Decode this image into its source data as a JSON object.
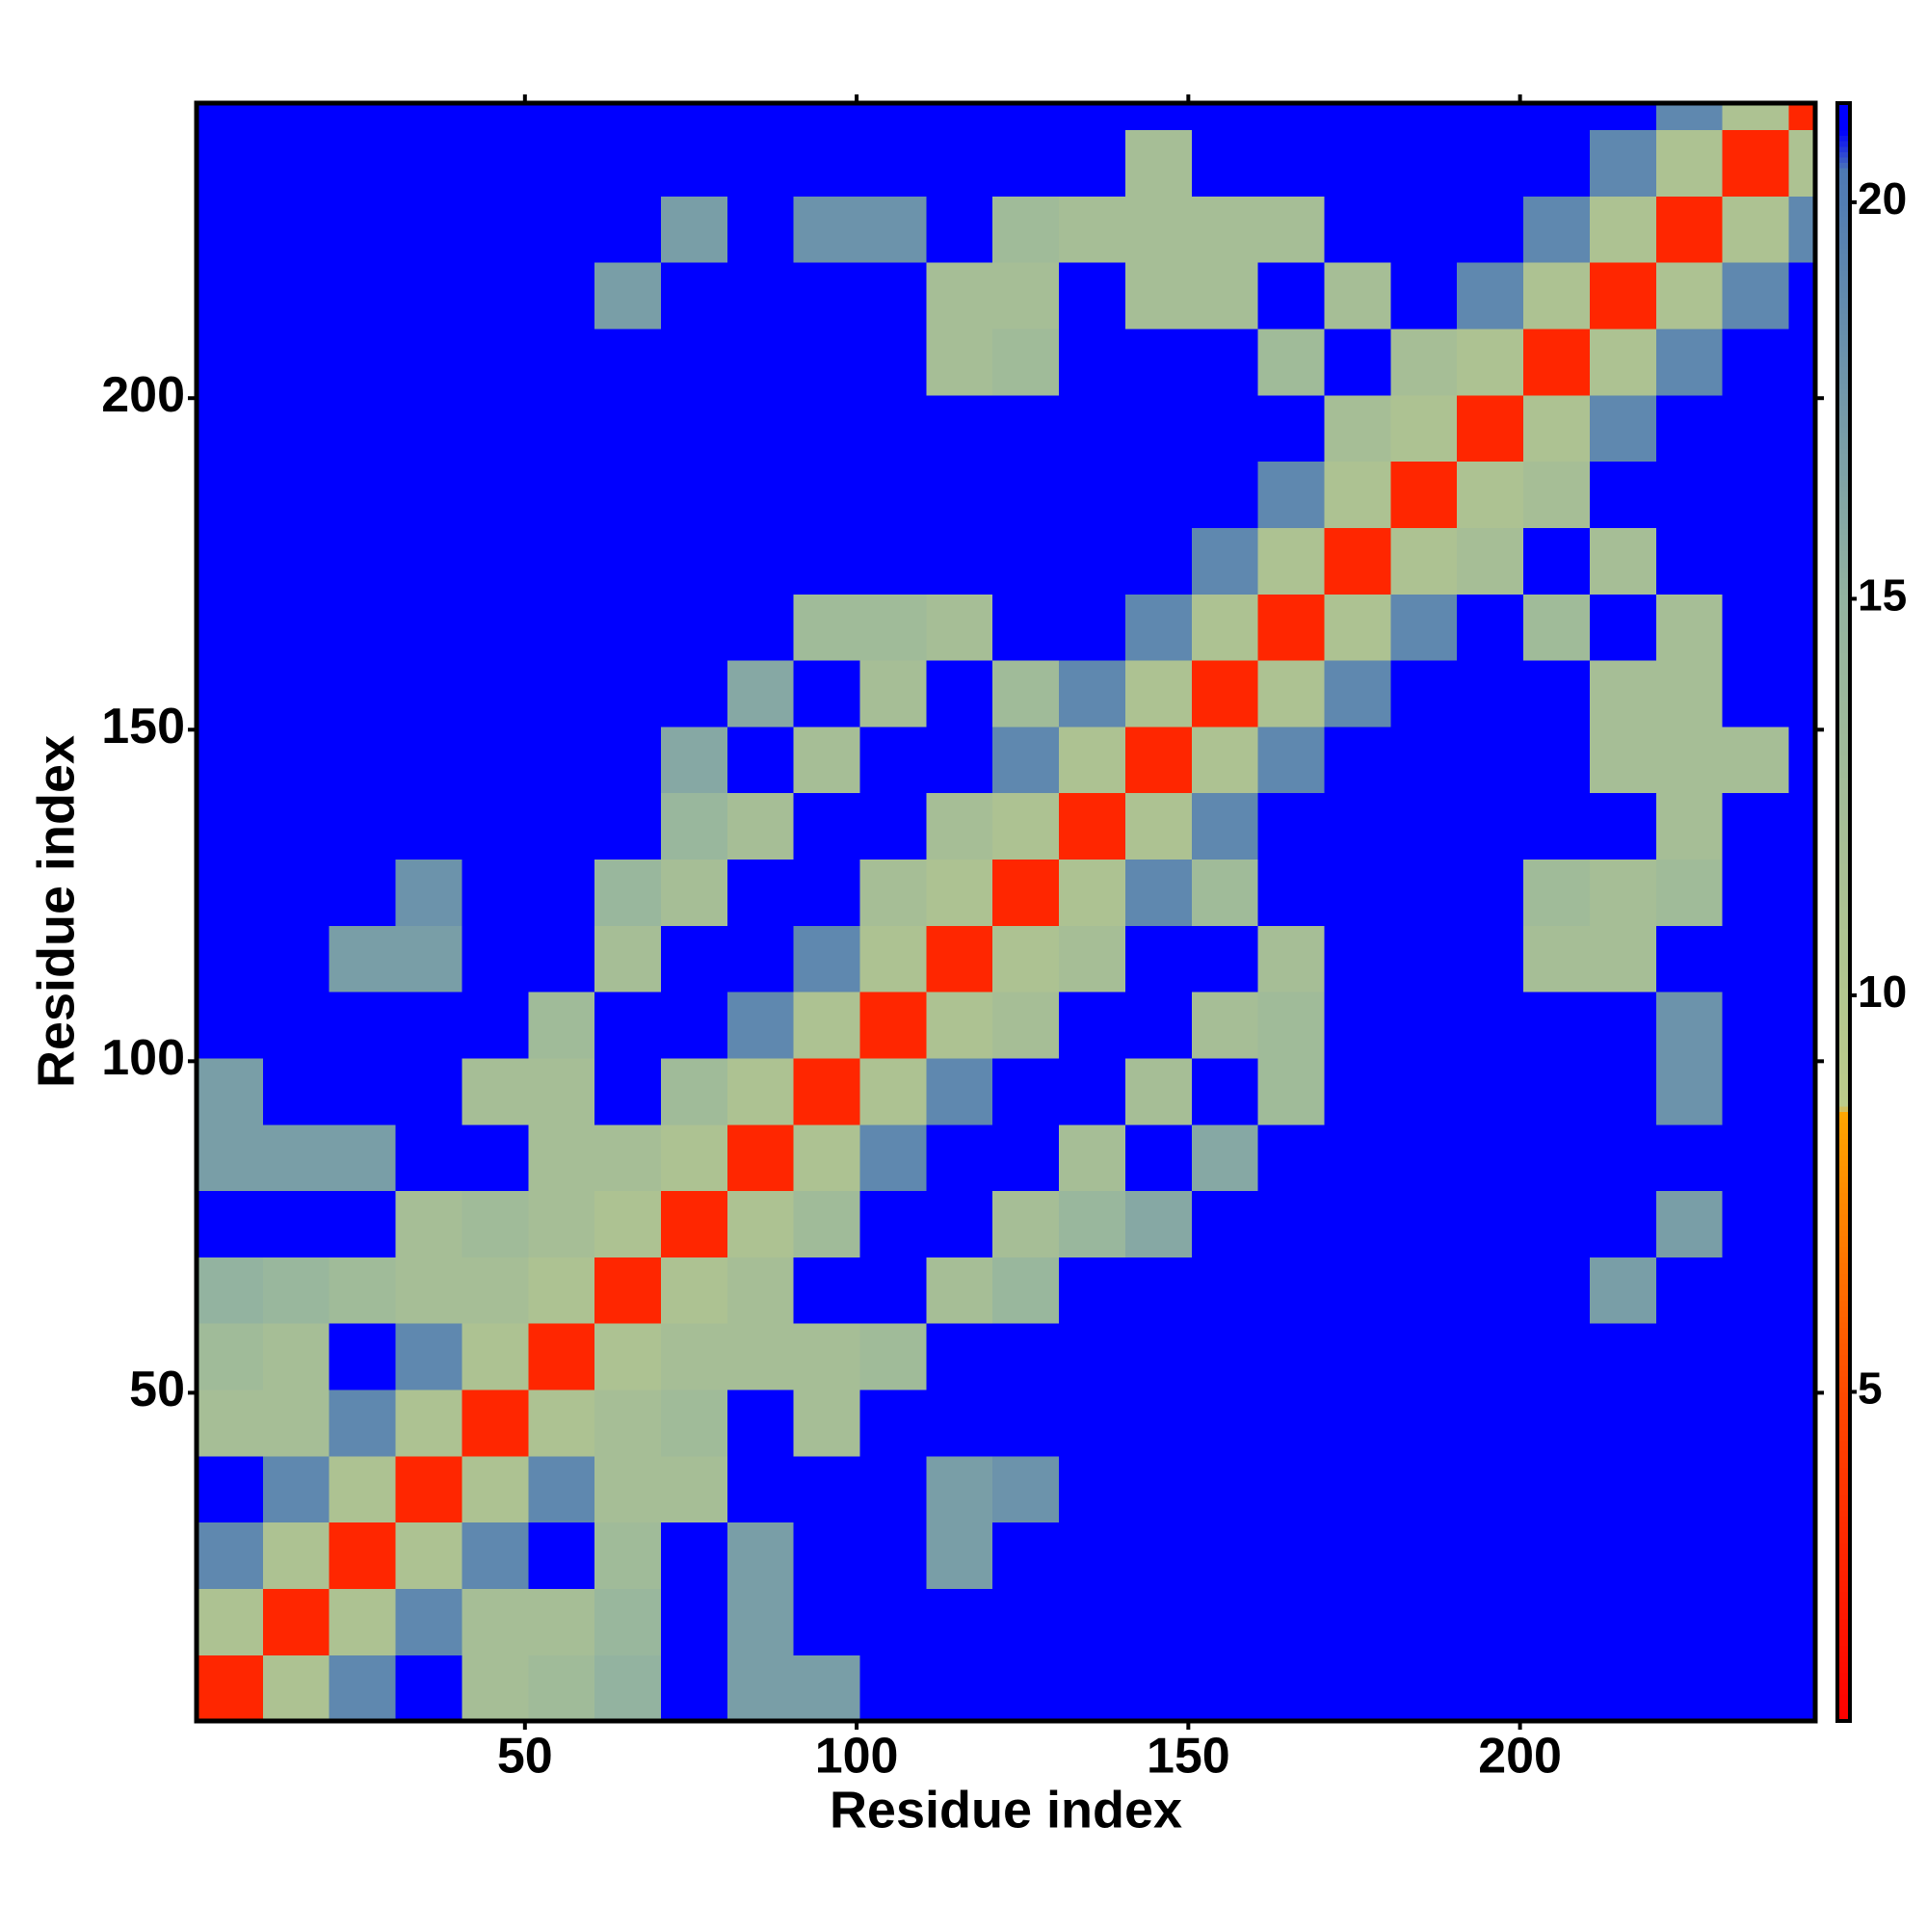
{
  "chart_data": {
    "type": "heatmap",
    "x_label": "Residue index",
    "y_label": "Residue index",
    "xlim": [
      0.5,
      244.5
    ],
    "ylim": [
      0.5,
      244.5
    ],
    "xticks": [
      50,
      100,
      150,
      200
    ],
    "yticks": [
      50,
      100,
      150,
      200
    ],
    "zlim": [
      0.85,
      21.25
    ],
    "zticks": [
      5,
      10,
      15,
      20
    ],
    "colorscale": [
      [
        0.85,
        "#ff0000"
      ],
      [
        5,
        "#ff4a00"
      ],
      [
        8.5,
        "#ffa500"
      ],
      [
        8.6,
        "#bccb8a"
      ],
      [
        15,
        "#93b3a0"
      ],
      [
        20.4,
        "#4d79b4"
      ],
      [
        20.9,
        "#0000ff"
      ],
      [
        21.25,
        "#0000ff"
      ]
    ],
    "bins": [
      0.5,
      10.5,
      20.5,
      30.5,
      40.5,
      50.5,
      60.5,
      70.5,
      80.5,
      90.5,
      100.5,
      110.5,
      120.5,
      130.5,
      140.5,
      150.5,
      160.5,
      170.5,
      180.5,
      190.5,
      200.5,
      210.5,
      220.5,
      230.5,
      240.5,
      244.5
    ],
    "z": [
      [
        3,
        11,
        19,
        21,
        12,
        13,
        15,
        21,
        17,
        17,
        21,
        21,
        21,
        21,
        21,
        21,
        21,
        21,
        21,
        21,
        21,
        21,
        21,
        21,
        21
      ],
      [
        11,
        3,
        11,
        19,
        12,
        12,
        14,
        21,
        17,
        21,
        21,
        21,
        21,
        21,
        21,
        21,
        21,
        21,
        21,
        21,
        21,
        21,
        21,
        21,
        21
      ],
      [
        19,
        11,
        3,
        11,
        19,
        21,
        13,
        21,
        17,
        21,
        21,
        17,
        21,
        21,
        21,
        21,
        21,
        21,
        21,
        21,
        21,
        21,
        21,
        21,
        21
      ],
      [
        21,
        19,
        11,
        3,
        11,
        19,
        12,
        12,
        21,
        21,
        21,
        17,
        18,
        21,
        21,
        21,
        21,
        21,
        21,
        21,
        21,
        21,
        21,
        21,
        21
      ],
      [
        12,
        12,
        19,
        11,
        3,
        11,
        12,
        13,
        21,
        12,
        21,
        21,
        21,
        21,
        21,
        21,
        21,
        21,
        21,
        21,
        21,
        21,
        21,
        21,
        21
      ],
      [
        13,
        12,
        21,
        19,
        11,
        3,
        11,
        12,
        12,
        12,
        13,
        21,
        21,
        21,
        21,
        21,
        21,
        21,
        21,
        21,
        21,
        21,
        21,
        21,
        21
      ],
      [
        15,
        14,
        13,
        12,
        12,
        11,
        3,
        11,
        12,
        21,
        21,
        12,
        14,
        21,
        21,
        21,
        21,
        21,
        21,
        21,
        21,
        17,
        21,
        21,
        21
      ],
      [
        21,
        21,
        21,
        12,
        13,
        12,
        11,
        3,
        11,
        13,
        21,
        21,
        12,
        14,
        16,
        21,
        21,
        21,
        21,
        21,
        21,
        21,
        17,
        21,
        21
      ],
      [
        17,
        17,
        17,
        21,
        21,
        12,
        12,
        11,
        3,
        11,
        19,
        21,
        21,
        12,
        21,
        16,
        21,
        21,
        21,
        21,
        21,
        21,
        21,
        21,
        21
      ],
      [
        17,
        21,
        21,
        21,
        12,
        12,
        21,
        13,
        11,
        3,
        11,
        19,
        21,
        21,
        12,
        21,
        13,
        21,
        21,
        21,
        21,
        21,
        18,
        21,
        21
      ],
      [
        21,
        21,
        21,
        21,
        21,
        13,
        21,
        21,
        19,
        11,
        3,
        11,
        12,
        21,
        21,
        12,
        13,
        21,
        21,
        21,
        21,
        21,
        18,
        21,
        21
      ],
      [
        21,
        21,
        17,
        17,
        21,
        21,
        12,
        21,
        21,
        19,
        11,
        3,
        11,
        12,
        21,
        21,
        12,
        21,
        21,
        21,
        12,
        12,
        21,
        21,
        21
      ],
      [
        21,
        21,
        21,
        18,
        21,
        21,
        14,
        12,
        21,
        21,
        12,
        11,
        3,
        11,
        19,
        13,
        21,
        21,
        21,
        21,
        13,
        12,
        13,
        21,
        21
      ],
      [
        21,
        21,
        21,
        21,
        21,
        21,
        21,
        14,
        12,
        21,
        21,
        12,
        11,
        3,
        11,
        19,
        21,
        21,
        21,
        21,
        21,
        21,
        12,
        21,
        21
      ],
      [
        21,
        21,
        21,
        21,
        21,
        21,
        21,
        16,
        21,
        12,
        21,
        21,
        19,
        11,
        3,
        11,
        19,
        21,
        21,
        21,
        21,
        12,
        12,
        12,
        21
      ],
      [
        21,
        21,
        21,
        21,
        21,
        21,
        21,
        21,
        16,
        21,
        12,
        21,
        13,
        19,
        11,
        3,
        11,
        19,
        21,
        21,
        21,
        12,
        12,
        21,
        21
      ],
      [
        21,
        21,
        21,
        21,
        21,
        21,
        21,
        21,
        21,
        13,
        13,
        12,
        21,
        21,
        19,
        11,
        3,
        11,
        19,
        21,
        13,
        21,
        12,
        21,
        21
      ],
      [
        21,
        21,
        21,
        21,
        21,
        21,
        21,
        21,
        21,
        21,
        21,
        21,
        21,
        21,
        21,
        19,
        11,
        3,
        11,
        12,
        21,
        12,
        21,
        21,
        21
      ],
      [
        21,
        21,
        21,
        21,
        21,
        21,
        21,
        21,
        21,
        21,
        21,
        21,
        21,
        21,
        21,
        21,
        19,
        11,
        3,
        11,
        12,
        21,
        21,
        21,
        21
      ],
      [
        21,
        21,
        21,
        21,
        21,
        21,
        21,
        21,
        21,
        21,
        21,
        21,
        21,
        21,
        21,
        21,
        21,
        12,
        11,
        3,
        11,
        19,
        21,
        21,
        21
      ],
      [
        21,
        21,
        21,
        21,
        21,
        21,
        21,
        21,
        21,
        21,
        21,
        12,
        13,
        21,
        21,
        21,
        13,
        21,
        12,
        11,
        3,
        11,
        19,
        21,
        21
      ],
      [
        21,
        21,
        21,
        21,
        21,
        21,
        17,
        21,
        21,
        21,
        21,
        12,
        12,
        21,
        12,
        12,
        21,
        12,
        21,
        19,
        11,
        3,
        11,
        19,
        21
      ],
      [
        21,
        21,
        21,
        21,
        21,
        21,
        21,
        17,
        21,
        18,
        18,
        21,
        13,
        12,
        12,
        12,
        12,
        21,
        21,
        21,
        19,
        11,
        3,
        11,
        19
      ],
      [
        21,
        21,
        21,
        21,
        21,
        21,
        21,
        21,
        21,
        21,
        21,
        21,
        21,
        21,
        12,
        21,
        21,
        21,
        21,
        21,
        21,
        19,
        11,
        3,
        11
      ],
      [
        21,
        21,
        21,
        21,
        21,
        21,
        21,
        21,
        21,
        21,
        21,
        21,
        21,
        21,
        21,
        21,
        21,
        21,
        21,
        21,
        21,
        21,
        19,
        11,
        3
      ]
    ]
  }
}
